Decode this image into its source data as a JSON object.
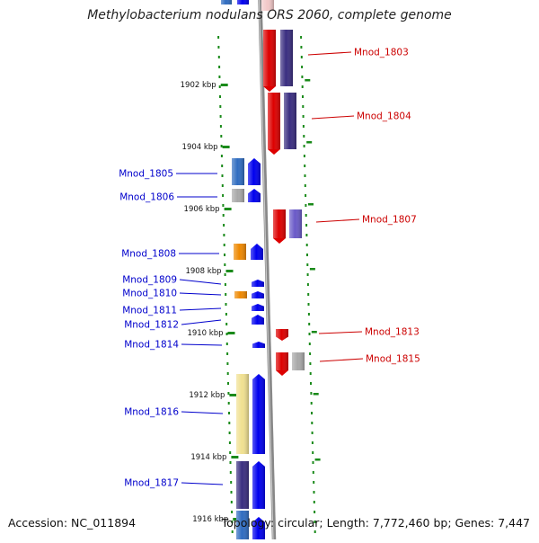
{
  "title": "Methylobacterium nodulans ORS 2060, complete genome",
  "accession_label": "Accession: NC_011894",
  "summary": {
    "topology": "Topology: circular",
    "length": "Length: 7,772,460 bp",
    "genes": "Genes: 7,447"
  },
  "colors": {
    "plus_strand_label": "#0000cc",
    "minus_strand_label": "#cc0000",
    "tick": "#1a8a1a",
    "backbone": "#888888"
  },
  "ticks": [
    {
      "label": "1902 kbp"
    },
    {
      "label": "1904 kbp"
    },
    {
      "label": "1906 kbp"
    },
    {
      "label": "1908 kbp"
    },
    {
      "label": "1910 kbp"
    },
    {
      "label": "1912 kbp"
    },
    {
      "label": "1914 kbp"
    },
    {
      "label": "1916 kbp"
    }
  ],
  "genes": [
    {
      "label": "Mnod_1803",
      "strand": "minus",
      "cog_color": "#dd0000",
      "prot_color": "#3a2e80"
    },
    {
      "label": "Mnod_1804",
      "strand": "minus",
      "cog_color": "#dd0000",
      "prot_color": "#3a2e80"
    },
    {
      "label": "Mnod_1805",
      "strand": "plus",
      "cog_color": "#2f6cc0",
      "prot_color": "#0000ee"
    },
    {
      "label": "Mnod_1806",
      "strand": "plus",
      "cog_color": "#a8a8a8",
      "prot_color": "#0000ee"
    },
    {
      "label": "Mnod_1807",
      "strand": "minus",
      "cog_color": "#dd0000",
      "prot_color": "#6a5ac8"
    },
    {
      "label": "Mnod_1808",
      "strand": "plus",
      "cog_color": "#ee8800",
      "prot_color": "#0000ee"
    },
    {
      "label": "Mnod_1809",
      "strand": "plus",
      "cog_color": "",
      "prot_color": "#0000ee"
    },
    {
      "label": "Mnod_1810",
      "strand": "plus",
      "cog_color": "#ee8800",
      "prot_color": "#0000ee"
    },
    {
      "label": "Mnod_1811",
      "strand": "plus",
      "cog_color": "",
      "prot_color": "#0000ee"
    },
    {
      "label": "Mnod_1812",
      "strand": "plus",
      "cog_color": "",
      "prot_color": "#0000ee"
    },
    {
      "label": "Mnod_1813",
      "strand": "minus",
      "cog_color": "",
      "prot_color": "#dd0000"
    },
    {
      "label": "Mnod_1814",
      "strand": "plus",
      "cog_color": "",
      "prot_color": "#0000ee"
    },
    {
      "label": "Mnod_1815",
      "strand": "minus",
      "cog_color": "#dd0000",
      "prot_color": "#a8a8a8"
    },
    {
      "label": "Mnod_1816",
      "strand": "plus",
      "cog_color": "#f0e090",
      "prot_color": "#0000ee"
    },
    {
      "label": "Mnod_1817",
      "strand": "plus",
      "cog_color": "#3a2e80",
      "prot_color": "#0000ee"
    }
  ]
}
